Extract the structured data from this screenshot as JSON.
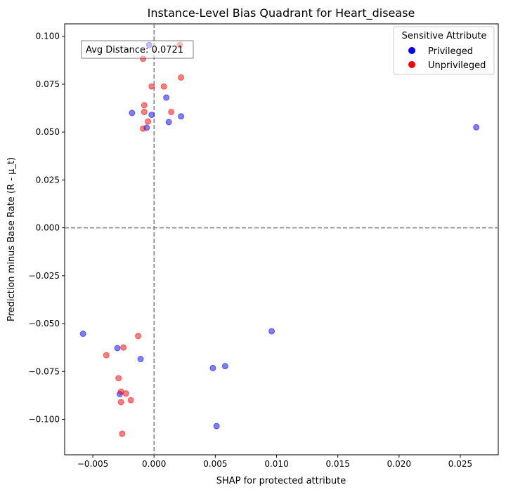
{
  "chart_data": {
    "type": "scatter",
    "title": "Instance-Level Bias Quadrant for Heart_disease",
    "xlabel": "SHAP for protected attribute",
    "ylabel": "Prediction minus Base Rate (R - μ_t)",
    "xlim": [
      -0.0073,
      0.0281
    ],
    "ylim": [
      -0.1185,
      0.1065
    ],
    "xticks": [
      -0.005,
      0.0,
      0.005,
      0.01,
      0.015,
      0.02,
      0.025
    ],
    "xtick_labels": [
      "−0.005",
      "0.000",
      "0.005",
      "0.010",
      "0.015",
      "0.020",
      "0.025"
    ],
    "yticks": [
      0.1,
      0.075,
      0.05,
      0.025,
      0.0,
      -0.025,
      -0.05,
      -0.075,
      -0.1
    ],
    "ytick_labels": [
      "0.100",
      "0.075",
      "0.050",
      "0.025",
      "0.000",
      "−0.025",
      "−0.050",
      "−0.075",
      "−0.100"
    ],
    "reference_lines": {
      "x": 0.0,
      "y": 0.0,
      "style": "dashed",
      "color": "#808080"
    },
    "annotation": "Avg Distance: 0.0721",
    "legend": {
      "title": "Sensitive Attribute",
      "placement": "upper-right"
    },
    "series": [
      {
        "name": "Privileged",
        "color": "#0000ff",
        "points": [
          [
            -0.0004,
            0.0955
          ],
          [
            -0.0018,
            0.06
          ],
          [
            -0.0002,
            0.059
          ],
          [
            -0.0006,
            0.0523
          ],
          [
            0.001,
            0.068
          ],
          [
            0.0012,
            0.0552
          ],
          [
            0.0022,
            0.0582
          ],
          [
            0.0263,
            0.0525
          ],
          [
            -0.0058,
            -0.0553
          ],
          [
            -0.003,
            -0.0628
          ],
          [
            -0.0011,
            -0.0685
          ],
          [
            -0.0028,
            -0.0868
          ],
          [
            0.0096,
            -0.054
          ],
          [
            0.0048,
            -0.0732
          ],
          [
            0.0058,
            -0.0722
          ],
          [
            0.0051,
            -0.1035
          ]
        ]
      },
      {
        "name": "Unprivileged",
        "color": "#ff0000",
        "points": [
          [
            -0.0009,
            0.0883
          ],
          [
            0.0021,
            0.0955
          ],
          [
            0.0022,
            0.0785
          ],
          [
            -0.0002,
            0.0738
          ],
          [
            0.0008,
            0.0738
          ],
          [
            -0.0008,
            0.064
          ],
          [
            -0.0008,
            0.0605
          ],
          [
            0.0014,
            0.0605
          ],
          [
            -0.0005,
            0.0555
          ],
          [
            -0.0009,
            0.0518
          ],
          [
            -0.0039,
            -0.0665
          ],
          [
            -0.0025,
            -0.0625
          ],
          [
            -0.0013,
            -0.0565
          ],
          [
            -0.0029,
            -0.0785
          ],
          [
            -0.0027,
            -0.0855
          ],
          [
            -0.0023,
            -0.0865
          ],
          [
            -0.0019,
            -0.09
          ],
          [
            -0.0027,
            -0.091
          ],
          [
            -0.0026,
            -0.1075
          ]
        ]
      }
    ]
  }
}
